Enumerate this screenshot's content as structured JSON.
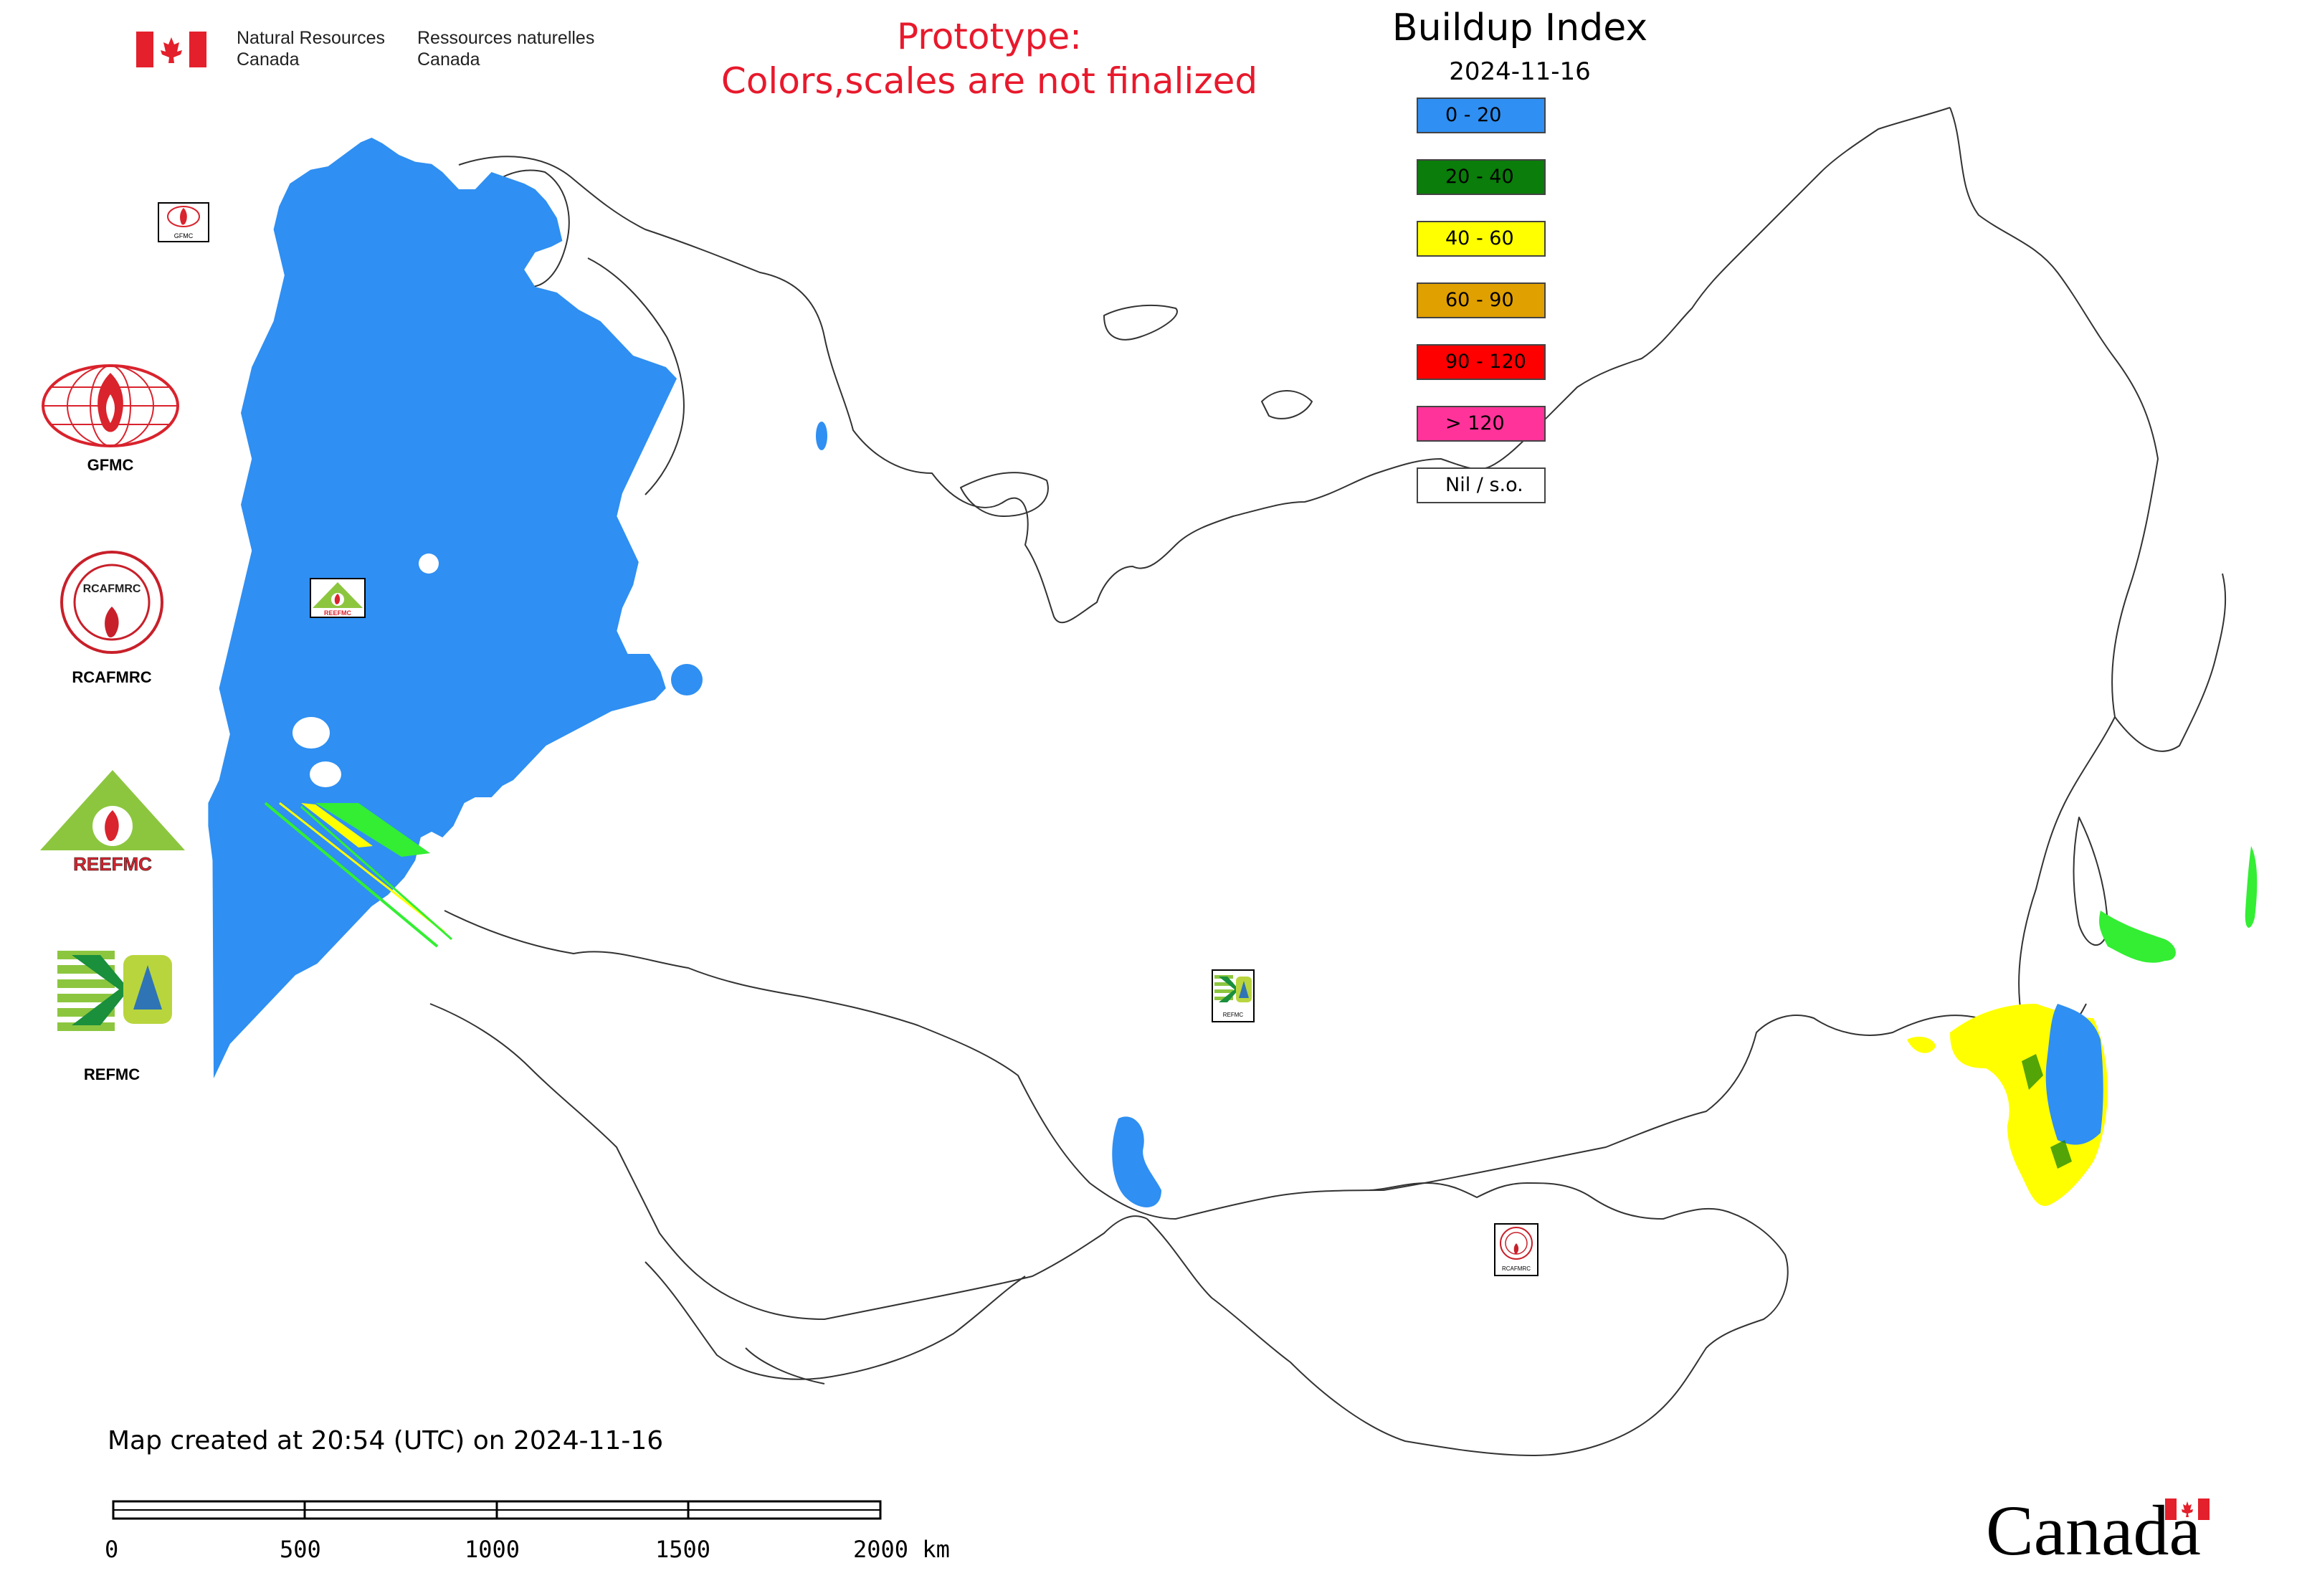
{
  "header": {
    "nrcan_en": [
      "Natural Resources",
      "Canada"
    ],
    "nrcan_fr": [
      "Ressources naturelles",
      "Canada"
    ],
    "prototype_lines": [
      "Prototype:",
      "Colors,scales are not finalized"
    ],
    "title": "Buildup Index",
    "date": "2024-11-16"
  },
  "legend": [
    {
      "label": "0 - 20",
      "color": "#2f8ff2"
    },
    {
      "label": "20 - 40",
      "color": "#0a7d0a"
    },
    {
      "label": "40 - 60",
      "color": "#ffff00"
    },
    {
      "label": "60 - 90",
      "color": "#e0a000"
    },
    {
      "label": "90 - 120",
      "color": "#ff0000"
    },
    {
      "label": "> 120",
      "color": "#ff3399"
    },
    {
      "label": "Nil / s.o.",
      "color": "#ffffff"
    }
  ],
  "side_logos": [
    {
      "name": "gfmc-logo",
      "label": "GFMC"
    },
    {
      "name": "rcafmrc-logo",
      "label": "RCAFMRC",
      "inner_text": "RCAFMRC"
    },
    {
      "name": "reefmc-logo",
      "label": "REEFMC",
      "inner_text": "REEFMC"
    },
    {
      "name": "refmc-logo",
      "label": "REFMC"
    }
  ],
  "map_markers": [
    {
      "name": "gfmc-marker",
      "label": "GFMC"
    },
    {
      "name": "reefmc-marker",
      "label": "REEFMC"
    },
    {
      "name": "refmc-marker",
      "label": "REFMC"
    },
    {
      "name": "rcafmrc-marker",
      "label": "RCAFMRC"
    }
  ],
  "footer": {
    "created": "Map created at 20:54 (UTC) on 2024-11-16",
    "scale_ticks": [
      "0",
      "500",
      "1000",
      "1500",
      "2000 km"
    ],
    "wordmark": "Canada"
  },
  "colors": {
    "prototype": "#e8192c",
    "map_fill_blue": "#2f8ff2",
    "map_fill_green": "#33ee33",
    "map_fill_yellow": "#ffff00"
  }
}
